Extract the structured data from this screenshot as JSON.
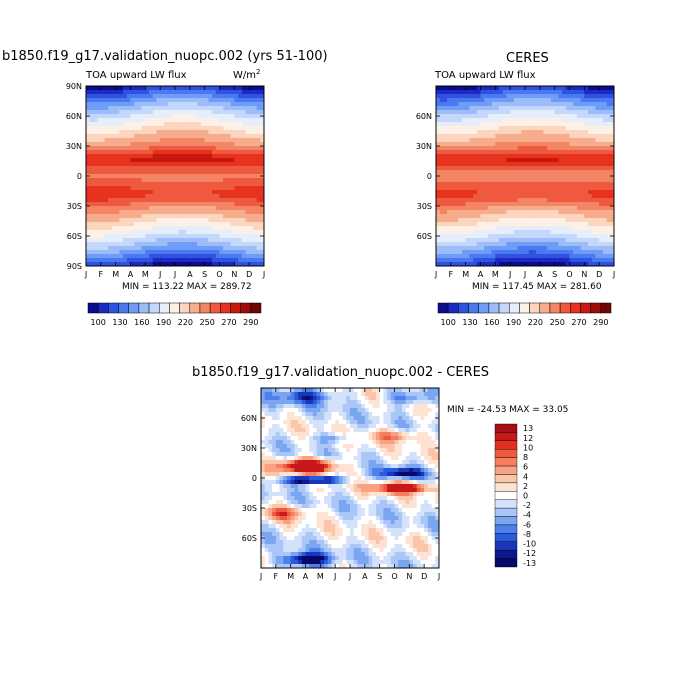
{
  "chart_data": [
    {
      "type": "heatmap",
      "title": "b1850.f19_g17.validation_nuopc.002 (yrs 51-100)",
      "subtitle_left": "TOA upward LW flux",
      "units_prefix": "W/m",
      "units_sup": "2",
      "x_ticks": [
        "J",
        "F",
        "M",
        "A",
        "M",
        "J",
        "J",
        "A",
        "S",
        "O",
        "N",
        "D",
        "J"
      ],
      "y_ticks": [
        "90N",
        "60N",
        "30N",
        "0",
        "30S",
        "60S",
        "90S"
      ],
      "y_range": [
        -90,
        90
      ],
      "stats": "MIN = 113.22   MAX = 289.72",
      "colorbar_labels": [
        "100",
        "130",
        "160",
        "190",
        "220",
        "250",
        "270",
        "290"
      ],
      "colorbar_colors": [
        "#0a0d8c",
        "#1b2ac0",
        "#2f52e0",
        "#4a79f0",
        "#6f9cf6",
        "#9dbdfa",
        "#c4d8fb",
        "#e6eefb",
        "#fdf0e6",
        "#fbd5bd",
        "#f7ad8c",
        "#f38566",
        "#ef5a3e",
        "#e5331f",
        "#c8190f",
        "#a10c09",
        "#700606"
      ],
      "variant": "model"
    },
    {
      "type": "heatmap",
      "title": "CERES",
      "subtitle_left": "TOA upward LW flux",
      "x_ticks": [
        "J",
        "F",
        "M",
        "A",
        "M",
        "J",
        "J",
        "A",
        "S",
        "O",
        "N",
        "D",
        "J"
      ],
      "y_ticks": [
        "60N",
        "30N",
        "0",
        "30S",
        "60S"
      ],
      "y_range": [
        -90,
        90
      ],
      "stats": "MIN = 117.45   MAX = 281.60",
      "colorbar_labels": [
        "100",
        "130",
        "160",
        "190",
        "220",
        "250",
        "270",
        "290"
      ],
      "colorbar_colors": [
        "#0a0d8c",
        "#1b2ac0",
        "#2f52e0",
        "#4a79f0",
        "#6f9cf6",
        "#9dbdfa",
        "#c4d8fb",
        "#e6eefb",
        "#fdf0e6",
        "#fbd5bd",
        "#f7ad8c",
        "#f38566",
        "#ef5a3e",
        "#e5331f",
        "#c8190f",
        "#a10c09",
        "#700606"
      ],
      "variant": "obs"
    },
    {
      "type": "heatmap",
      "title": "b1850.f19_g17.validation_nuopc.002 - CERES",
      "x_ticks": [
        "J",
        "F",
        "M",
        "A",
        "M",
        "J",
        "J",
        "A",
        "S",
        "O",
        "N",
        "D",
        "J"
      ],
      "y_ticks": [
        "60N",
        "30N",
        "0",
        "30S",
        "60S"
      ],
      "y_range": [
        -90,
        90
      ],
      "stats": "MIN = -24.53   MAX =  33.05",
      "colorbar_labels": [
        "13",
        "12",
        "10",
        "8",
        "6",
        "4",
        "2",
        "0",
        "-2",
        "-4",
        "-6",
        "-8",
        "-10",
        "-12",
        "-13"
      ],
      "colorbar_colors": [
        "#a50f15",
        "#c8181a",
        "#e0301e",
        "#ef5a3e",
        "#f47f5e",
        "#f8a283",
        "#fbc5aa",
        "#fde3d4",
        "#ffffff",
        "#d3e2fa",
        "#a9c6f6",
        "#7aa5f1",
        "#4d80ea",
        "#2a5bdc",
        "#1937b8",
        "#0b1890",
        "#050a6a"
      ],
      "variant": "diff"
    }
  ]
}
